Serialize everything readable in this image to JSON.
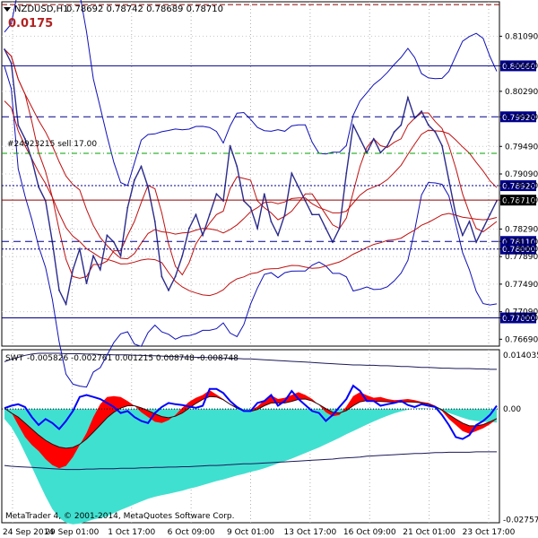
{
  "window": {
    "title": "NZDUSD,H1",
    "ohlc": "0.78692 0.78742 0.78689 0.78710",
    "profit": "0.0175",
    "order_label": "#24923215 sell 17.00",
    "copyright": "MetaTrader 4, © 2001-2014, MetaQuotes Software Corp."
  },
  "colors": {
    "background": "#ffffff",
    "price": "#2b2b8c",
    "envelope": "#1010b8",
    "ma": "#c01010",
    "level": "#00008b",
    "order_line": "#8b0000",
    "tp_line": "#00a000",
    "area_pos": "#ff0000",
    "area_neg": "#40e0d0",
    "osc_line": "#0000ff"
  },
  "chart_data": [
    {
      "type": "line",
      "name": "price",
      "symbol": "NZDUSD",
      "timeframe": "H1",
      "ylim": [
        0.7659,
        0.8159
      ],
      "y_ticks": [
        "0.81090",
        "0.80660",
        "0.80290",
        "0.79920",
        "0.79490",
        "0.79090",
        "0.78920",
        "0.78710",
        "0.78290",
        "0.78110",
        "0.78000",
        "0.77890",
        "0.77490",
        "0.77090",
        "0.77000",
        "0.76690"
      ],
      "x_labels": [
        "24 Sep 2014",
        "29 Sep 01:00",
        "1 Oct 17:00",
        "6 Oct 09:00",
        "9 Oct 01:00",
        "13 Oct 17:00",
        "16 Oct 09:00",
        "21 Oct 01:00",
        "23 Oct 17:00"
      ],
      "price_levels": [
        {
          "value": 0.8066,
          "label": "0.80660",
          "style": "solid"
        },
        {
          "value": 0.7992,
          "label": "0.79920",
          "style": "dashed"
        },
        {
          "value": 0.7892,
          "label": "0.78920",
          "style": "dotted"
        },
        {
          "value": 0.7811,
          "label": "0.78110",
          "style": "dashed"
        },
        {
          "value": 0.78,
          "label": "0.78000",
          "style": "dotted"
        },
        {
          "value": 0.77,
          "label": "0.77000",
          "style": "solid"
        }
      ],
      "current_price": {
        "value": 0.7871,
        "label": "0.78710"
      },
      "tp_level": 0.7939,
      "top_dashed_level": 0.8155,
      "series": [
        {
          "name": "close",
          "values": [
            0.809,
            0.807,
            0.798,
            0.796,
            0.793,
            0.789,
            0.787,
            0.781,
            0.774,
            0.772,
            0.777,
            0.78,
            0.775,
            0.779,
            0.777,
            0.782,
            0.781,
            0.779,
            0.786,
            0.79,
            0.792,
            0.789,
            0.784,
            0.776,
            0.774,
            0.776,
            0.779,
            0.783,
            0.785,
            0.782,
            0.785,
            0.788,
            0.787,
            0.795,
            0.792,
            0.787,
            0.786,
            0.783,
            0.788,
            0.784,
            0.782,
            0.785,
            0.791,
            0.789,
            0.787,
            0.785,
            0.785,
            0.783,
            0.781,
            0.783,
            0.791,
            0.798,
            0.796,
            0.794,
            0.796,
            0.794,
            0.795,
            0.797,
            0.798,
            0.802,
            0.799,
            0.8,
            0.798,
            0.797,
            0.795,
            0.79,
            0.785,
            0.782,
            0.784,
            0.781,
            0.783,
            0.785,
            0.787
          ]
        }
      ]
    },
    {
      "type": "area",
      "name": "SWT",
      "header_values": "-0.005826 -0.002761 0.001215 0.008748 -0.008748",
      "ylim": [
        -0.0284,
        0.0148
      ],
      "y_ticks": [
        "0.014035",
        "0.00",
        "-0.027578"
      ],
      "series": [
        {
          "name": "histogram",
          "values": [
            0.0002,
            -0.0008,
            -0.004,
            -0.007,
            -0.009,
            -0.0105,
            -0.0125,
            -0.014,
            -0.0148,
            -0.0142,
            -0.012,
            -0.009,
            -0.006,
            -0.002,
            0.0012,
            0.003,
            0.0032,
            0.003,
            0.002,
            0.0008,
            -0.0008,
            -0.002,
            -0.0032,
            -0.0035,
            -0.0028,
            -0.0015,
            0.0003,
            0.0018,
            0.0028,
            0.0035,
            0.0047,
            0.0036,
            0.0025,
            0.0012,
            0.0005,
            -0.0004,
            -0.0003,
            0.0006,
            0.0022,
            0.0034,
            0.0025,
            0.0028,
            0.0035,
            0.0042,
            0.0035,
            0.0025,
            0.001,
            -0.0008,
            -0.0018,
            -0.0015,
            0.0006,
            0.0032,
            0.0042,
            0.0034,
            0.0028,
            0.003,
            0.0025,
            0.0022,
            0.0023,
            0.0025,
            0.0022,
            0.0018,
            0.0015,
            0.0008,
            -0.0005,
            -0.0025,
            -0.004,
            -0.0055,
            -0.0062,
            -0.0055,
            -0.0048,
            -0.0038,
            -0.0025
          ]
        },
        {
          "name": "filled_base",
          "values": [
            -0.0025,
            -0.0045,
            -0.0075,
            -0.011,
            -0.0145,
            -0.0182,
            -0.0218,
            -0.025,
            -0.0272,
            -0.0284,
            -0.0288,
            -0.0286,
            -0.0281,
            -0.0276,
            -0.0272,
            -0.0268,
            -0.026,
            -0.0252,
            -0.0245,
            -0.0238,
            -0.0231,
            -0.0224,
            -0.0219,
            -0.0215,
            -0.0212,
            -0.0208,
            -0.0204,
            -0.0199,
            -0.0195,
            -0.019,
            -0.0185,
            -0.018,
            -0.0176,
            -0.0171,
            -0.0166,
            -0.0162,
            -0.0157,
            -0.0153,
            -0.0148,
            -0.0142,
            -0.0136,
            -0.013,
            -0.0124,
            -0.0117,
            -0.011,
            -0.0103,
            -0.0096,
            -0.0088,
            -0.008,
            -0.0072,
            -0.0063,
            -0.0055,
            -0.0047,
            -0.0039,
            -0.0031,
            -0.0024,
            -0.0017,
            -0.0011,
            -0.0006,
            -0.0002,
            0.0001,
            0.0002,
            0.0001,
            -0.0001,
            -0.0005,
            -0.001,
            -0.0016,
            -0.0022,
            -0.0027,
            -0.003,
            -0.0032,
            -0.0033,
            -0.0034
          ]
        },
        {
          "name": "signal",
          "values": [
            0.0002,
            -0.001,
            -0.002,
            -0.0035,
            -0.005,
            -0.0065,
            -0.0078,
            -0.0088,
            -0.0095,
            -0.0098,
            -0.0096,
            -0.0088,
            -0.0075,
            -0.0058,
            -0.004,
            -0.0022,
            -0.0008,
            0.0002,
            0.0008,
            0.0008,
            0.0003,
            -0.0004,
            -0.0012,
            -0.0019,
            -0.0022,
            -0.0018,
            -0.001,
            0.0002,
            0.0014,
            0.0024,
            0.0031,
            0.003,
            0.0023,
            0.0012,
            0.0002,
            -0.0005,
            -0.0006,
            -0.0001,
            0.0008,
            0.0015,
            0.0015,
            0.0015,
            0.0019,
            0.0024,
            0.0025,
            0.002,
            0.0011,
            0.0001,
            -0.0008,
            -0.001,
            -0.0004,
            0.0008,
            0.0018,
            0.0021,
            0.0019,
            0.0019,
            0.0018,
            0.0017,
            0.0017,
            0.0018,
            0.0017,
            0.0015,
            0.0012,
            0.0006,
            -0.0002,
            -0.0014,
            -0.0025,
            -0.0035,
            -0.0042,
            -0.0042,
            -0.0039,
            -0.0032,
            -0.0024
          ]
        },
        {
          "name": "oscillator",
          "values": [
            0.0002,
            0.0008,
            0.0012,
            0.0005,
            -0.002,
            -0.004,
            -0.0025,
            -0.0035,
            -0.005,
            -0.003,
            -0.0005,
            0.003,
            0.0035,
            0.003,
            0.0025,
            0.0015,
            0.0005,
            -0.001,
            -0.0005,
            -0.002,
            -0.003,
            -0.0035,
            -0.001,
            0.0005,
            0.0015,
            0.0012,
            0.001,
            0.0006,
            0.0003,
            0.0008,
            0.005,
            0.005,
            0.004,
            0.002,
            0.0005,
            -0.0005,
            -0.0005,
            0.0015,
            0.002,
            0.0035,
            0.0008,
            0.002,
            0.0045,
            0.0025,
            0.001,
            -0.0005,
            -0.001,
            -0.003,
            -0.0015,
            0.0005,
            0.0025,
            0.0058,
            0.0045,
            0.002,
            0.002,
            0.0008,
            0.0012,
            0.0015,
            0.002,
            0.001,
            0.0005,
            0.0012,
            0.0008,
            0.0005,
            -0.0015,
            -0.004,
            -0.007,
            -0.0075,
            -0.0065,
            -0.004,
            -0.003,
            -0.0015,
            0.0008
          ]
        },
        {
          "name": "upper_band",
          "values": [
            0.0118,
            0.0124,
            0.0129,
            0.0134,
            0.0137,
            0.0139,
            0.0139,
            0.0139,
            0.0139,
            0.0138,
            0.0138,
            0.0138,
            0.0137,
            0.0137,
            0.0136,
            0.0136,
            0.0135,
            0.0135,
            0.0135,
            0.0134,
            0.0134,
            0.0133,
            0.0133,
            0.0132,
            0.0131,
            0.0131,
            0.013,
            0.013,
            0.0129,
            0.0129,
            0.0128,
            0.0128,
            0.0127,
            0.0127,
            0.0126,
            0.0125,
            0.0125,
            0.0124,
            0.0123,
            0.0122,
            0.0121,
            0.012,
            0.0119,
            0.0118,
            0.0117,
            0.0116,
            0.0115,
            0.0114,
            0.0113,
            0.0112,
            0.0111,
            0.011,
            0.011,
            0.0109,
            0.0109,
            0.0108,
            0.0108,
            0.0107,
            0.0106,
            0.0106,
            0.0105,
            0.0104,
            0.0104,
            0.0103,
            0.0102,
            0.0102,
            0.0101,
            0.0101,
            0.0101,
            0.01,
            0.01,
            0.0099,
            0.0099
          ]
        },
        {
          "name": "lower_band",
          "values": [
            -0.0141,
            -0.0143,
            -0.0144,
            -0.0145,
            -0.0146,
            -0.0147,
            -0.0148,
            -0.0149,
            -0.015,
            -0.0151,
            -0.0151,
            -0.0151,
            -0.015,
            -0.015,
            -0.0149,
            -0.0149,
            -0.0149,
            -0.0148,
            -0.0148,
            -0.0148,
            -0.0147,
            -0.0147,
            -0.0146,
            -0.0146,
            -0.0145,
            -0.0145,
            -0.0144,
            -0.0144,
            -0.0143,
            -0.0142,
            -0.0141,
            -0.0141,
            -0.014,
            -0.0139,
            -0.0138,
            -0.0137,
            -0.0137,
            -0.0136,
            -0.0135,
            -0.0134,
            -0.0133,
            -0.0132,
            -0.0131,
            -0.013,
            -0.0129,
            -0.0128,
            -0.0127,
            -0.0126,
            -0.0125,
            -0.0123,
            -0.0122,
            -0.0121,
            -0.012,
            -0.0118,
            -0.0117,
            -0.0116,
            -0.0115,
            -0.0114,
            -0.0113,
            -0.0112,
            -0.0111,
            -0.0111,
            -0.011,
            -0.0109,
            -0.0109,
            -0.0108,
            -0.0108,
            -0.0108,
            -0.0108,
            -0.0107,
            -0.0107,
            -0.0107,
            -0.0107
          ]
        }
      ]
    }
  ]
}
